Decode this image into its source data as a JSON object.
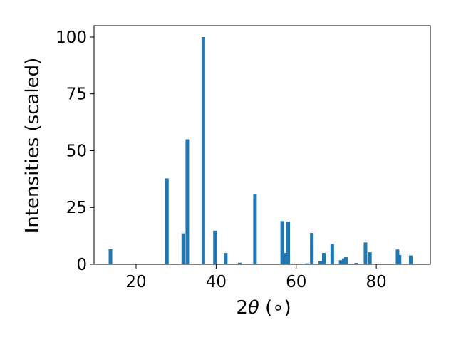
{
  "chart_data": {
    "type": "bar",
    "xlabel_main": "2",
    "xlabel_symbol": "θ",
    "xlabel_unit": " (∘)",
    "ylabel": "Intensities (scaled)",
    "xlim": [
      9.5,
      93.5
    ],
    "ylim": [
      0,
      105
    ],
    "xticks": [
      20,
      40,
      60,
      80
    ],
    "yticks": [
      0,
      25,
      50,
      75,
      100
    ],
    "bar_color": "#1f77b4",
    "grid": false,
    "x": [
      13.6,
      27.7,
      31.8,
      32.8,
      36.8,
      39.7,
      42.4,
      45.9,
      49.7,
      56.5,
      57.4,
      58.0,
      62.6,
      63.9,
      66.0,
      66.9,
      69.0,
      71.1,
      71.9,
      72.4,
      73.2,
      75.0,
      77.3,
      78.4,
      85.3,
      85.8,
      88.6
    ],
    "values": [
      6.6,
      37.8,
      13.6,
      55.0,
      100.0,
      14.8,
      5.0,
      0.7,
      31.0,
      19.0,
      5.0,
      18.7,
      0.4,
      13.8,
      1.4,
      5.0,
      9.0,
      1.8,
      2.6,
      3.4,
      0.3,
      0.6,
      9.6,
      5.3,
      6.5,
      4.1,
      3.9
    ]
  }
}
